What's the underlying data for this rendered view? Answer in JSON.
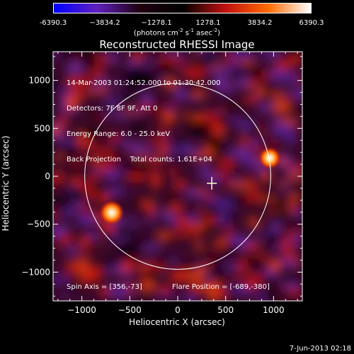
{
  "colorbar": {
    "ticks": [
      "-6390.3",
      "−3834.2",
      "−1278.1",
      "1278.1",
      "3834.2",
      "6390.3"
    ],
    "units_prefix": "(photons cm",
    "units_sup1": "-2",
    "units_mid": " s",
    "units_sup2": "-1",
    "units_mid2": " asec",
    "units_sup3": "-2",
    "units_suffix": ")"
  },
  "plot": {
    "title": "Reconstructed RHESSI Image",
    "info_lines": [
      "14-Mar-2003 01:24:52.000 to 01:30:42.000",
      "Detectors: 7F 8F 9F, Att 0",
      "Energy Range: 6.0 - 25.0 keV",
      "Back Projection    Total counts: 1.61E+04"
    ],
    "spin_axis": "Spin Axis = [356,-73]",
    "flare_position": "Flare Position = [-689,-380]",
    "xlabel": "Heliocentric X (arcsec)",
    "ylabel": "Heliocentric Y (arcsec)",
    "footer_date": "7-Jun-2013 02:18"
  },
  "chart_data": {
    "type": "heatmap",
    "title": "Reconstructed RHESSI Image",
    "xlabel": "Heliocentric X (arcsec)",
    "ylabel": "Heliocentric Y (arcsec)",
    "xlim": [
      -1300,
      1300
    ],
    "ylim": [
      -1300,
      1300
    ],
    "x_ticks": [
      -1000,
      -500,
      0,
      500,
      1000
    ],
    "y_ticks": [
      -1000,
      -500,
      0,
      500,
      1000
    ],
    "x_tick_labels": [
      "−1000",
      "−500",
      "0",
      "500",
      "1000"
    ],
    "y_tick_labels": [
      "−1000",
      "−500",
      "0",
      "500",
      "1000"
    ],
    "value_range": [
      -6390.3,
      6390.3
    ],
    "colormap": [
      "#0000ff",
      "#6020c0",
      "#200010",
      "#000000",
      "#c01010",
      "#ff6a00",
      "#ffffff"
    ],
    "solar_limb_radius_arcsec": 970,
    "solar_limb_center": [
      0,
      0
    ],
    "marker_cross": [
      356,
      -73
    ],
    "sources": [
      {
        "x": -689,
        "y": -380,
        "intensity": 1.0
      },
      {
        "x": 960,
        "y": 190,
        "intensity": 0.9
      }
    ]
  }
}
